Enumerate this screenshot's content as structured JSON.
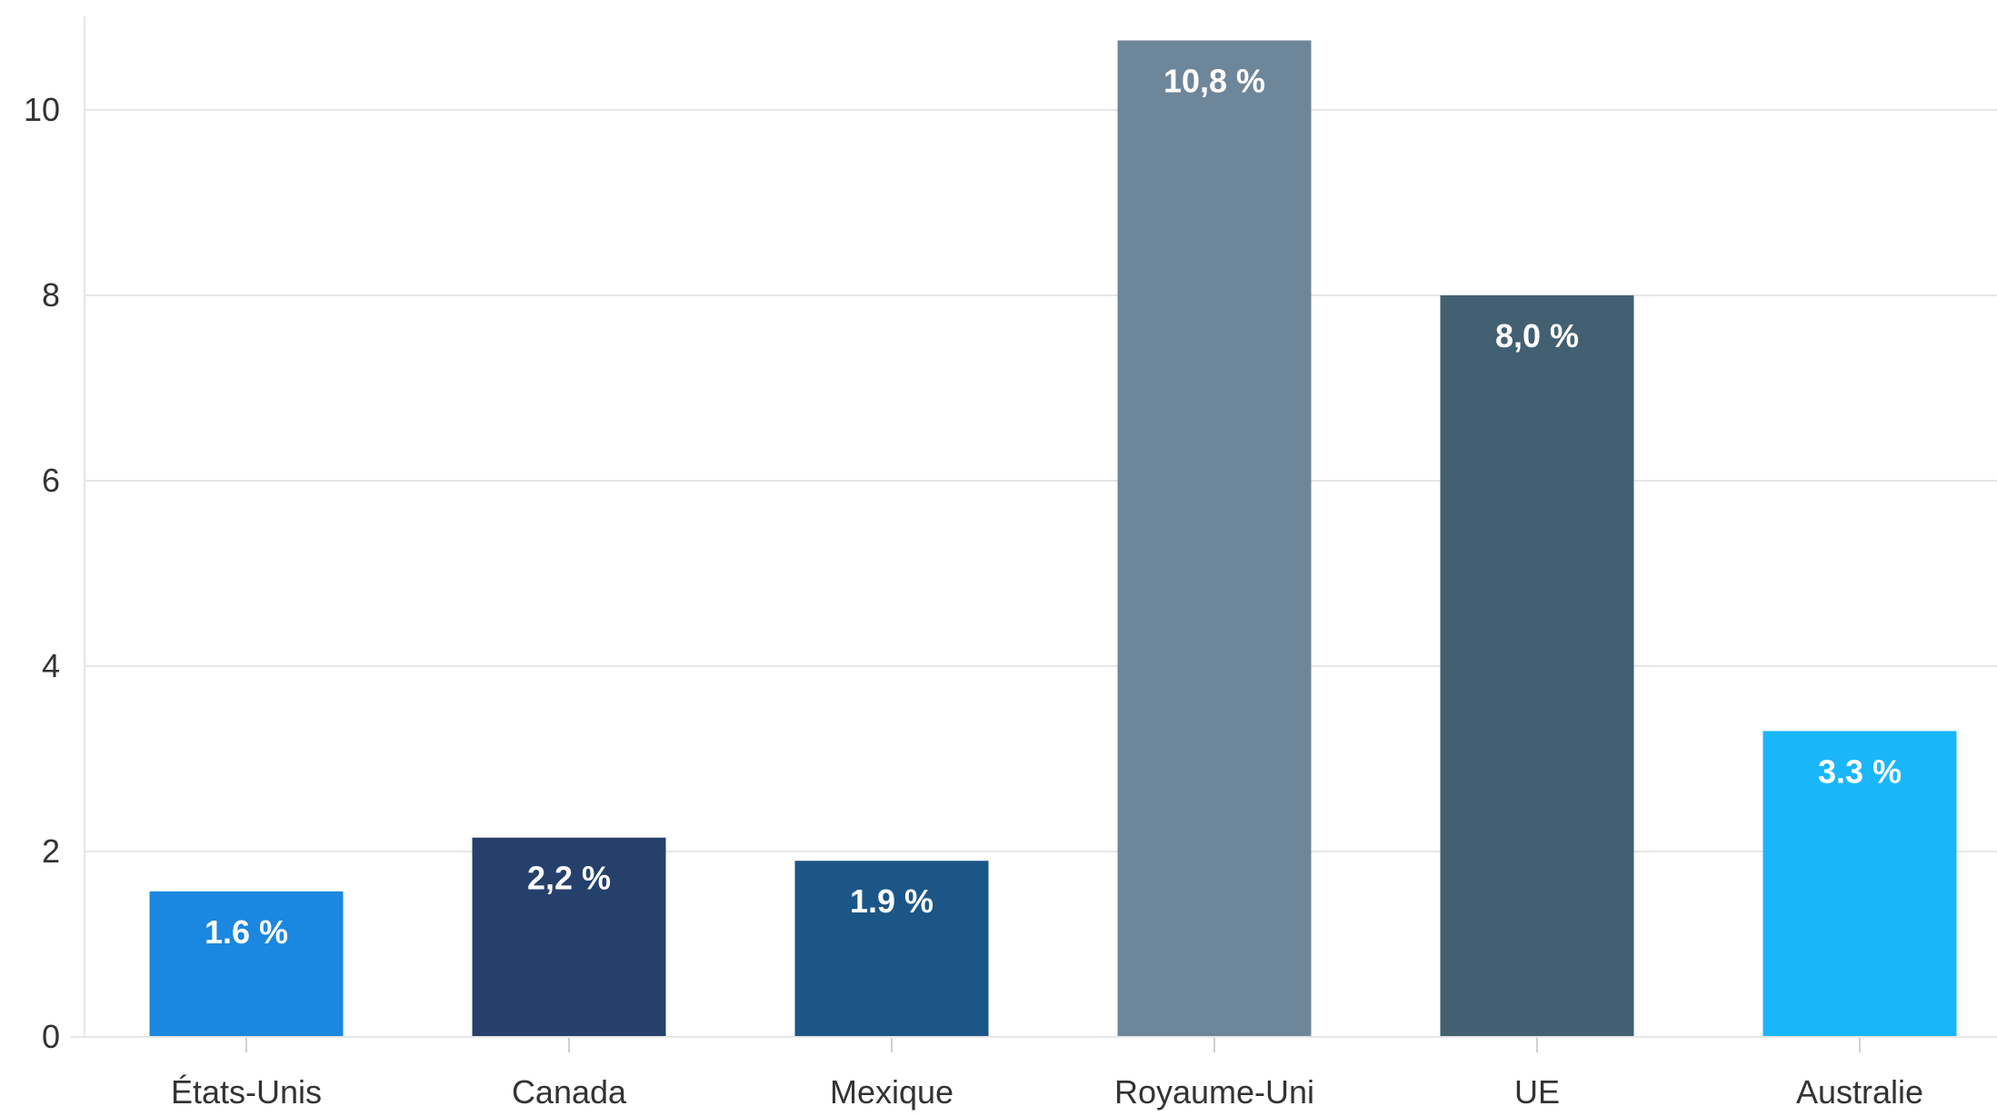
{
  "chart_data": {
    "type": "bar",
    "title": "",
    "xlabel": "",
    "ylabel": "",
    "ylim": [
      0,
      11
    ],
    "yticks": [
      0,
      2,
      4,
      6,
      8,
      10
    ],
    "grid": true,
    "categories": [
      "États-Unis",
      "Canada",
      "Mexique",
      "Royaume-Uni",
      "UE",
      "Australie"
    ],
    "values": [
      1.57,
      2.15,
      1.9,
      10.75,
      8.0,
      3.3
    ],
    "data_labels": [
      "1.6 %",
      "2,2 %",
      "1.9 %",
      "10,8 %",
      "8,0 %",
      "3.3 %"
    ],
    "colors": [
      "#1b87e0",
      "#25406b",
      "#1b5687",
      "#6e8699",
      "#426072",
      "#1ab6fa"
    ]
  }
}
